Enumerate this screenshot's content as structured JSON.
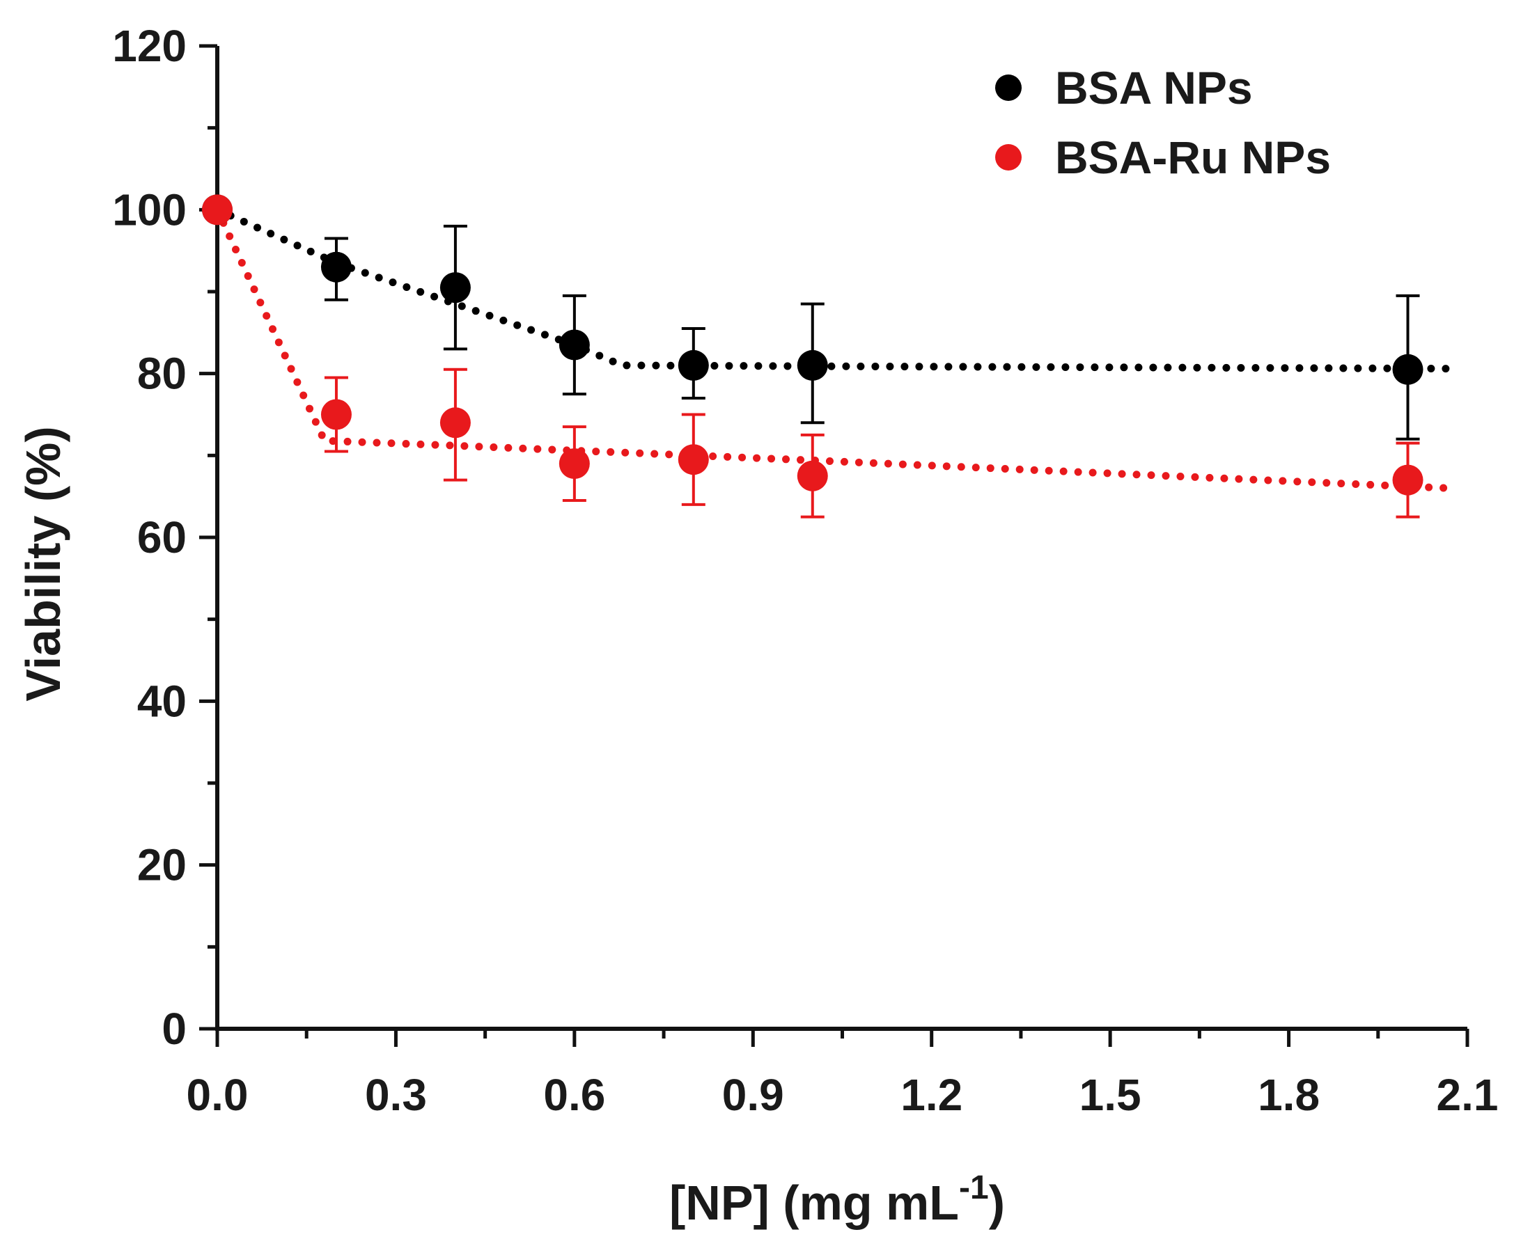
{
  "chart_data": {
    "type": "scatter",
    "title": "",
    "xlabel": "[NP] (mg mL",
    "xlabel_sup": "-1",
    "xlabel_close": ")",
    "ylabel": "Viability (%)",
    "xlim": [
      0,
      2.1
    ],
    "ylim": [
      0,
      120
    ],
    "xticks": [
      0.0,
      0.3,
      0.6,
      0.9,
      1.2,
      1.5,
      1.8,
      2.1
    ],
    "xtick_labels": [
      "0.0",
      "0.3",
      "0.6",
      "0.9",
      "1.2",
      "1.5",
      "1.8",
      "2.1"
    ],
    "yticks": [
      0,
      20,
      40,
      60,
      80,
      100,
      120
    ],
    "ytick_labels": [
      "0",
      "20",
      "40",
      "60",
      "80",
      "100",
      "120"
    ],
    "grid": false,
    "legend_position": "top-right",
    "series": [
      {
        "name": "BSA NPs",
        "color": "#000000",
        "x": [
          0,
          0.2,
          0.4,
          0.6,
          0.8,
          1.0,
          2.0
        ],
        "y": [
          100,
          93,
          90.5,
          83.5,
          81,
          81,
          80.5
        ],
        "err_low": [
          0,
          4,
          7.5,
          6,
          4,
          7,
          8.5
        ],
        "err_high": [
          0,
          3.5,
          7.5,
          6,
          4.5,
          7.5,
          9
        ],
        "fit_x": [
          0,
          0.2,
          0.4,
          0.6,
          0.68,
          1.0,
          2.07
        ],
        "fit_y": [
          100,
          93.5,
          88.5,
          83.5,
          81,
          80.9,
          80.6
        ]
      },
      {
        "name": "BSA-Ru NPs",
        "color": "#e8191c",
        "x": [
          0,
          0.2,
          0.4,
          0.6,
          0.8,
          1.0,
          2.0
        ],
        "y": [
          100,
          75,
          74,
          69,
          69.5,
          67.5,
          67
        ],
        "err_low": [
          0,
          4.5,
          7,
          4.5,
          5.5,
          5,
          4.5
        ],
        "err_high": [
          0,
          4.5,
          6.5,
          4.5,
          5.5,
          5,
          4.5
        ],
        "fit_x": [
          0,
          0.18,
          0.4,
          0.6,
          0.8,
          1.0,
          2.07
        ],
        "fit_y": [
          100,
          71.8,
          71.2,
          70.6,
          70,
          69.4,
          66
        ]
      }
    ]
  }
}
